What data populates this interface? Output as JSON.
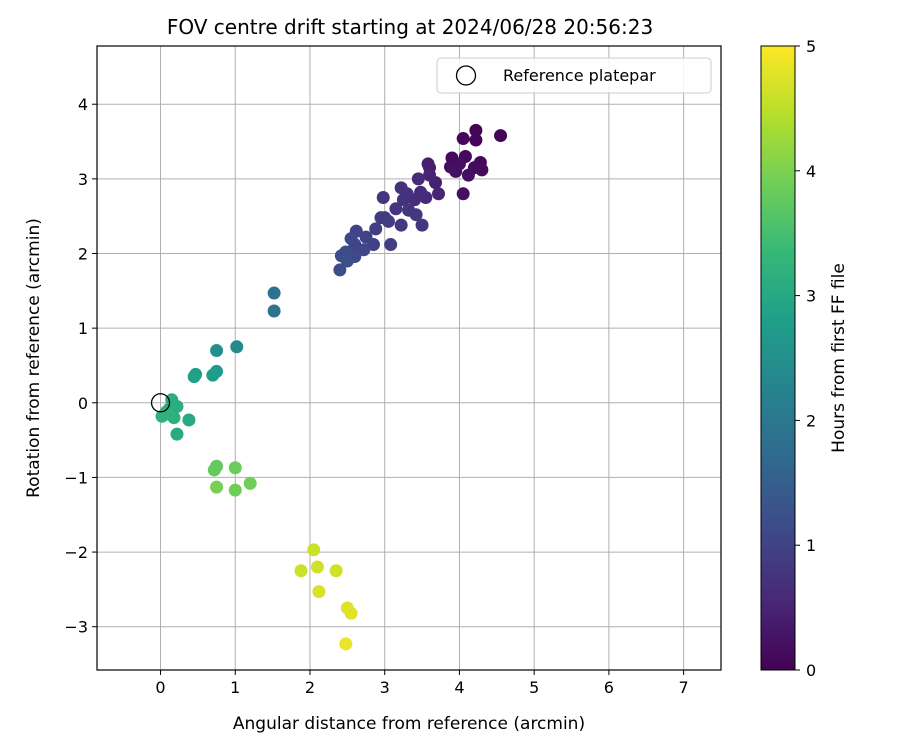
{
  "chart_data": {
    "type": "scatter",
    "title": "FOV centre drift starting at 2024/06/28 20:56:23",
    "xlabel": "Angular distance from reference (arcmin)",
    "ylabel": "Rotation from reference (arcmin)",
    "xlim": [
      -0.85,
      7.5
    ],
    "ylim": [
      -3.58,
      4.78
    ],
    "xticks": [
      0,
      1,
      2,
      3,
      4,
      5,
      6,
      7
    ],
    "yticks": [
      -3,
      -2,
      -1,
      0,
      1,
      2,
      3,
      4
    ],
    "tick_labels_x": [
      "0",
      "1",
      "2",
      "3",
      "4",
      "5",
      "6",
      "7"
    ],
    "tick_labels_y": [
      "−3",
      "−2",
      "−1",
      "0",
      "1",
      "2",
      "3",
      "4"
    ],
    "grid": true,
    "legend": {
      "placement": "top-right",
      "entries": [
        "Reference platepar"
      ]
    },
    "colormap": {
      "name": "viridis",
      "stops": [
        "#440154",
        "#482878",
        "#3e4989",
        "#31688e",
        "#26828e",
        "#1f9e89",
        "#35b779",
        "#6ece58",
        "#b5de2b",
        "#fde725"
      ],
      "vmin": 0,
      "vmax": 5,
      "ticks": [
        0,
        1,
        2,
        3,
        4,
        5
      ],
      "tick_labels": [
        "0",
        "1",
        "2",
        "3",
        "4",
        "5"
      ],
      "label": "Hours from first FF file"
    },
    "reference_point": {
      "x": 0,
      "y": 0
    },
    "points": [
      {
        "x": 4.55,
        "y": 3.58,
        "t": 0.05
      },
      {
        "x": 4.22,
        "y": 3.65,
        "t": 0.05
      },
      {
        "x": 4.22,
        "y": 3.52,
        "t": 0.06
      },
      {
        "x": 4.05,
        "y": 3.54,
        "t": 0.08
      },
      {
        "x": 4.08,
        "y": 3.3,
        "t": 0.1
      },
      {
        "x": 3.9,
        "y": 3.28,
        "t": 0.12
      },
      {
        "x": 4.28,
        "y": 3.22,
        "t": 0.12
      },
      {
        "x": 4.3,
        "y": 3.12,
        "t": 0.15
      },
      {
        "x": 4.2,
        "y": 3.15,
        "t": 0.15
      },
      {
        "x": 4.0,
        "y": 3.2,
        "t": 0.18
      },
      {
        "x": 3.88,
        "y": 3.16,
        "t": 0.2
      },
      {
        "x": 4.12,
        "y": 3.05,
        "t": 0.2
      },
      {
        "x": 4.05,
        "y": 2.8,
        "t": 0.22
      },
      {
        "x": 3.95,
        "y": 3.1,
        "t": 0.22
      },
      {
        "x": 3.6,
        "y": 3.15,
        "t": 0.35
      },
      {
        "x": 3.58,
        "y": 3.2,
        "t": 0.4
      },
      {
        "x": 3.68,
        "y": 2.95,
        "t": 0.45
      },
      {
        "x": 3.72,
        "y": 2.8,
        "t": 0.5
      },
      {
        "x": 3.55,
        "y": 2.75,
        "t": 0.55
      },
      {
        "x": 3.6,
        "y": 3.05,
        "t": 0.5
      },
      {
        "x": 3.45,
        "y": 3.0,
        "t": 0.6
      },
      {
        "x": 3.48,
        "y": 2.82,
        "t": 0.62
      },
      {
        "x": 3.4,
        "y": 2.72,
        "t": 0.65
      },
      {
        "x": 3.3,
        "y": 2.8,
        "t": 0.68
      },
      {
        "x": 3.22,
        "y": 2.88,
        "t": 0.7
      },
      {
        "x": 3.25,
        "y": 2.72,
        "t": 0.72
      },
      {
        "x": 3.15,
        "y": 2.6,
        "t": 0.75
      },
      {
        "x": 3.32,
        "y": 2.58,
        "t": 0.78
      },
      {
        "x": 3.42,
        "y": 2.52,
        "t": 0.8
      },
      {
        "x": 3.5,
        "y": 2.38,
        "t": 0.82
      },
      {
        "x": 3.22,
        "y": 2.38,
        "t": 0.85
      },
      {
        "x": 3.0,
        "y": 2.48,
        "t": 0.85
      },
      {
        "x": 2.95,
        "y": 2.48,
        "t": 0.88
      },
      {
        "x": 2.98,
        "y": 2.75,
        "t": 0.75
      },
      {
        "x": 3.05,
        "y": 2.43,
        "t": 0.9
      },
      {
        "x": 2.88,
        "y": 2.33,
        "t": 0.92
      },
      {
        "x": 3.08,
        "y": 2.12,
        "t": 0.95
      },
      {
        "x": 2.85,
        "y": 2.12,
        "t": 0.98
      },
      {
        "x": 2.75,
        "y": 2.22,
        "t": 1.0
      },
      {
        "x": 2.62,
        "y": 2.3,
        "t": 1.02
      },
      {
        "x": 2.6,
        "y": 2.12,
        "t": 1.05
      },
      {
        "x": 2.72,
        "y": 2.05,
        "t": 1.08
      },
      {
        "x": 2.55,
        "y": 2.2,
        "t": 1.1
      },
      {
        "x": 2.6,
        "y": 1.96,
        "t": 1.12
      },
      {
        "x": 2.48,
        "y": 2.02,
        "t": 1.15
      },
      {
        "x": 2.42,
        "y": 1.97,
        "t": 1.18
      },
      {
        "x": 2.4,
        "y": 1.78,
        "t": 1.2
      },
      {
        "x": 2.5,
        "y": 1.9,
        "t": 1.22
      },
      {
        "x": 1.52,
        "y": 1.47,
        "t": 1.85
      },
      {
        "x": 1.52,
        "y": 1.23,
        "t": 1.9
      },
      {
        "x": 1.02,
        "y": 0.75,
        "t": 2.4
      },
      {
        "x": 0.75,
        "y": 0.7,
        "t": 2.5
      },
      {
        "x": 0.75,
        "y": 0.42,
        "t": 2.7
      },
      {
        "x": 0.7,
        "y": 0.37,
        "t": 2.75
      },
      {
        "x": 0.47,
        "y": 0.38,
        "t": 2.8
      },
      {
        "x": 0.45,
        "y": 0.35,
        "t": 2.85
      },
      {
        "x": 0.38,
        "y": -0.23,
        "t": 3.0
      },
      {
        "x": 0.22,
        "y": -0.42,
        "t": 3.05
      },
      {
        "x": 0.22,
        "y": -0.05,
        "t": 3.1
      },
      {
        "x": 0.15,
        "y": 0.04,
        "t": 3.1
      },
      {
        "x": 0.12,
        "y": -0.08,
        "t": 3.12
      },
      {
        "x": 0.08,
        "y": -0.12,
        "t": 3.15
      },
      {
        "x": 0.18,
        "y": -0.2,
        "t": 3.15
      },
      {
        "x": 0.02,
        "y": -0.18,
        "t": 3.18
      },
      {
        "x": 0.1,
        "y": -0.15,
        "t": 3.2
      },
      {
        "x": 0.75,
        "y": -0.85,
        "t": 3.8
      },
      {
        "x": 0.72,
        "y": -0.9,
        "t": 3.8
      },
      {
        "x": 1.0,
        "y": -0.87,
        "t": 3.85
      },
      {
        "x": 1.2,
        "y": -1.08,
        "t": 3.9
      },
      {
        "x": 1.0,
        "y": -1.17,
        "t": 3.9
      },
      {
        "x": 0.75,
        "y": -1.13,
        "t": 3.95
      },
      {
        "x": 2.05,
        "y": -1.97,
        "t": 4.6
      },
      {
        "x": 1.88,
        "y": -2.25,
        "t": 4.62
      },
      {
        "x": 2.1,
        "y": -2.2,
        "t": 4.65
      },
      {
        "x": 2.35,
        "y": -2.25,
        "t": 4.65
      },
      {
        "x": 2.12,
        "y": -2.53,
        "t": 4.7
      },
      {
        "x": 2.5,
        "y": -2.75,
        "t": 4.75
      },
      {
        "x": 2.55,
        "y": -2.82,
        "t": 4.78
      },
      {
        "x": 2.48,
        "y": -3.23,
        "t": 4.85
      }
    ]
  }
}
